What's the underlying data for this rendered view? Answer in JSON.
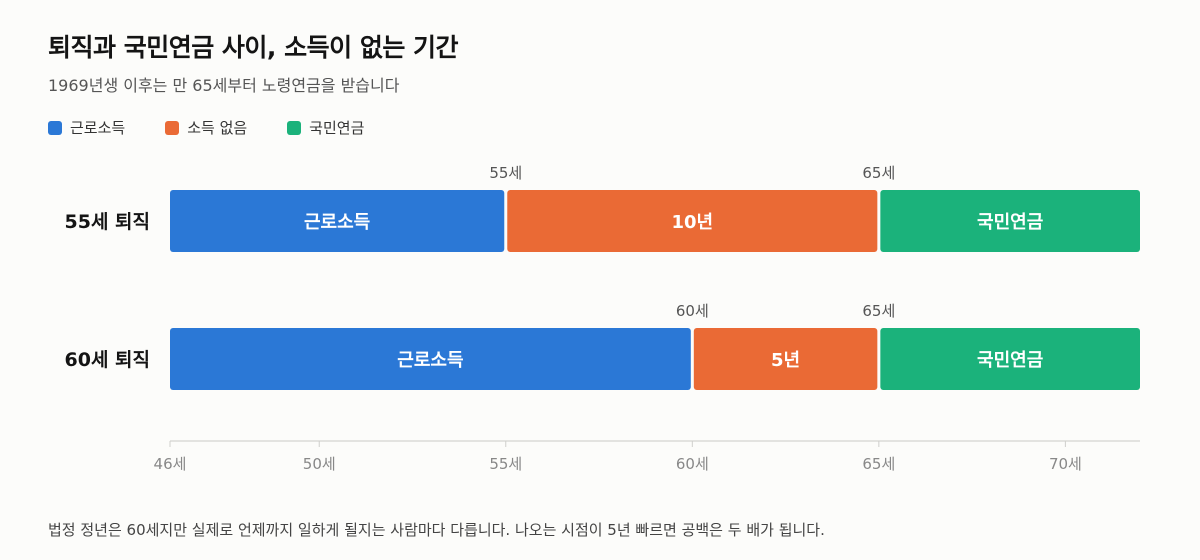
{
  "header": {
    "title": "퇴직과 국민연금 사이, 소득이 없는 기간",
    "subtitle": "1969년생 이후는 만 65세부터 노령연금을 받습니다"
  },
  "footnote": "법정 정년은 60세지만 실제로 언제까지 일하게 될지는 사람마다 다릅니다. 나오는 시점이 5년 빠르면 공백은 두 배가 됩니다.",
  "colors": {
    "work": "#2b78d6",
    "gap": "#ea6a35",
    "pension": "#1bb27b"
  },
  "chart_data": {
    "type": "bar",
    "orientation": "horizontal",
    "stacked": true,
    "title": "퇴직과 국민연금 사이, 소득이 없는 기간",
    "subtitle": "1969년생 이후는 만 65세부터 노령연금을 받습니다",
    "xlim": [
      46,
      72
    ],
    "x_ticks": [
      46,
      50,
      55,
      60,
      65,
      70
    ],
    "x_tick_labels": [
      "46세",
      "50세",
      "55세",
      "60세",
      "65세",
      "70세"
    ],
    "legend": {
      "placement": "top-left",
      "entries": [
        {
          "key": "work",
          "label": "근로소득"
        },
        {
          "key": "gap",
          "label": "소득 없음"
        },
        {
          "key": "pension",
          "label": "국민연금"
        }
      ]
    },
    "rows": [
      {
        "label": "55세 퇴직",
        "segments": [
          {
            "key": "work",
            "start": 46,
            "end": 55,
            "label": "근로소득"
          },
          {
            "key": "gap",
            "start": 55,
            "end": 65,
            "label": "10년"
          },
          {
            "key": "pension",
            "start": 65,
            "end": 72,
            "label": "국민연금"
          }
        ],
        "markers": [
          {
            "value": 55,
            "label": "55세"
          },
          {
            "value": 65,
            "label": "65세"
          }
        ]
      },
      {
        "label": "60세 퇴직",
        "segments": [
          {
            "key": "work",
            "start": 46,
            "end": 60,
            "label": "근로소득"
          },
          {
            "key": "gap",
            "start": 60,
            "end": 65,
            "label": "5년"
          },
          {
            "key": "pension",
            "start": 65,
            "end": 72,
            "label": "국민연금"
          }
        ],
        "markers": [
          {
            "value": 60,
            "label": "60세"
          },
          {
            "value": 65,
            "label": "65세"
          }
        ]
      }
    ],
    "grid": false
  }
}
